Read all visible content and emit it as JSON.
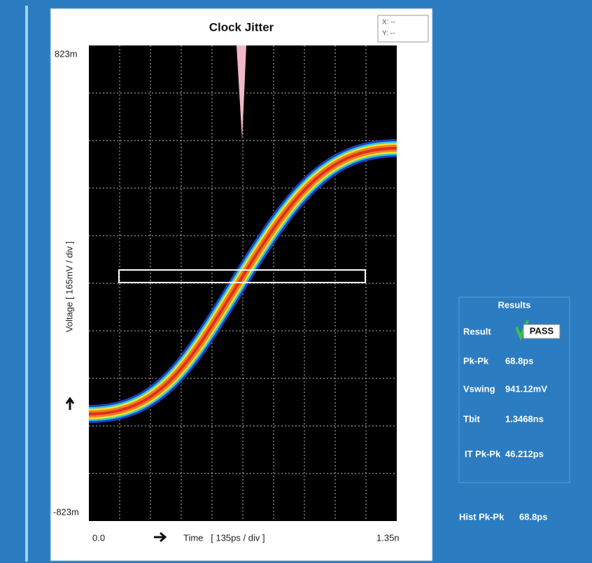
{
  "plot": {
    "title": "Clock Jitter",
    "cursor": {
      "x": "X: --",
      "y": "Y: --"
    },
    "y_top": "823m",
    "y_bottom": "-823m",
    "y_label": "Voltage   [ 165mV / div ]",
    "x_left": "0.0",
    "x_label": "Time   [ 135ps / div ]",
    "x_right": "1.35n"
  },
  "results": {
    "title": "Results",
    "rows": [
      [
        "Result",
        "PASS"
      ],
      [
        "Pk-Pk",
        "68.8ps"
      ],
      [
        "Vswing",
        "941.12mV"
      ],
      [
        "Tbit",
        "1.3468ns"
      ],
      [
        "IT Pk-Pk",
        "46.212ps"
      ],
      [
        "Hist Pk-Pk",
        "68.8ps"
      ]
    ]
  }
}
